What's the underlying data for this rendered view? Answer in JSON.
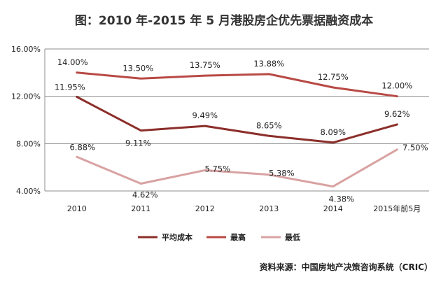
{
  "chart_data": {
    "type": "line",
    "title": "图：2010 年-2015 年 5 月港股房企优先票据融资成本",
    "categories": [
      "2010",
      "2011",
      "2012",
      "2013",
      "2014",
      "2015年前5月"
    ],
    "y_tick_labels": [
      "16.00%",
      "12.00%",
      "8.00%",
      "4.00%"
    ],
    "y_ticks": [
      16,
      12,
      8,
      4
    ],
    "ylim": [
      4,
      16
    ],
    "grid": true,
    "legend_position": "bottom",
    "series": [
      {
        "name": "平均成本",
        "color": "#8b2e2a",
        "values": [
          11.95,
          9.11,
          9.49,
          8.65,
          8.09,
          9.62
        ],
        "labels": [
          "11.95%",
          "9.11%",
          "9.49%",
          "8.65%",
          "8.09%",
          "9.62%"
        ]
      },
      {
        "name": "最高",
        "color": "#b84a45",
        "values": [
          14.0,
          13.5,
          13.75,
          13.88,
          12.75,
          12.0
        ],
        "labels": [
          "14.00%",
          "13.50%",
          "13.75%",
          "13.88%",
          "12.75%",
          "12.00%"
        ]
      },
      {
        "name": "最低",
        "color": "#d9a2a2",
        "values": [
          6.88,
          4.62,
          5.75,
          5.38,
          4.38,
          7.5
        ],
        "labels": [
          "6.88%",
          "4.62%",
          "5.75%",
          "5.38%",
          "4.38%",
          "7.50%"
        ]
      }
    ]
  },
  "source": "资料来源：中国房地产决策咨询系统（CRIC）"
}
